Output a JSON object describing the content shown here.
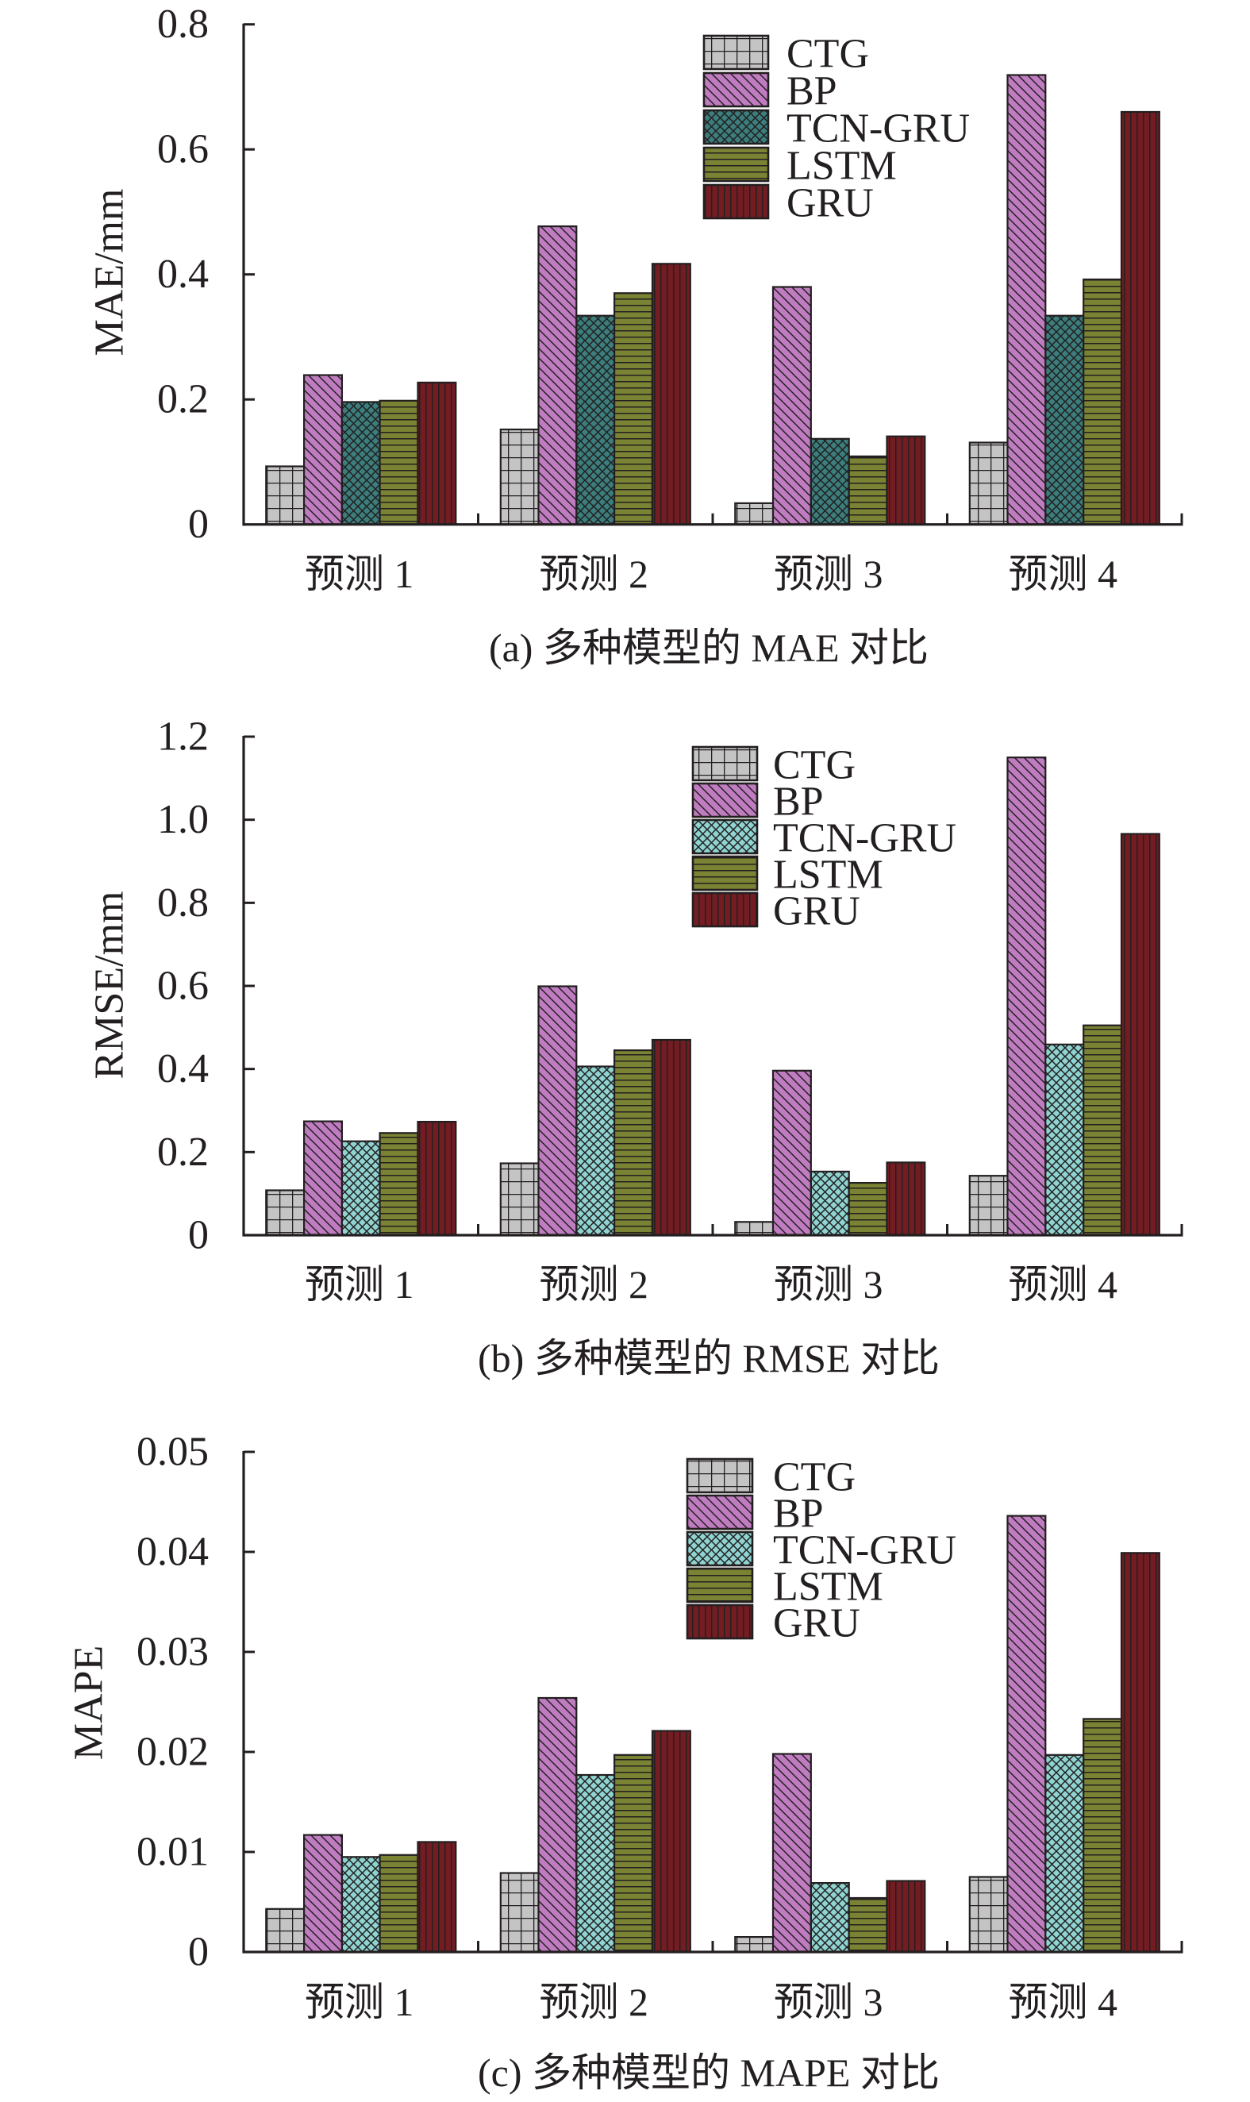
{
  "series_styles": [
    {
      "name": "CTG",
      "pattern": "grid",
      "color": "#c4c4c4"
    },
    {
      "name": "BP",
      "pattern": "diagonal",
      "color": "#c07cc0"
    },
    {
      "name": "TCN-GRU",
      "pattern": "crosshatch",
      "color": "#3b7e7d",
      "alt_color": "#8fd4d1"
    },
    {
      "name": "LSTM",
      "pattern": "horizontal",
      "color": "#7a8233"
    },
    {
      "name": "GRU",
      "pattern": "vertical",
      "color": "#731c22"
    }
  ],
  "chart_data": [
    {
      "type": "bar",
      "title": "(a) 多种模型的 MAE 对比",
      "xlabel": "",
      "ylabel": "MAE/mm",
      "ylim": [
        0,
        0.8
      ],
      "yticks": [
        0,
        0.2,
        0.4,
        0.6,
        0.8
      ],
      "ytick_labels": [
        "0",
        "0.2",
        "0.4",
        "0.6",
        "0.8"
      ],
      "categories": [
        "预测 1",
        "预测 2",
        "预测 3",
        "预测 4"
      ],
      "legend": {
        "position": "top-right",
        "entries": [
          "CTG",
          "BP",
          "TCN-GRU",
          "LSTM",
          "GRU"
        ]
      },
      "tcn_variant": "dark",
      "series": [
        {
          "name": "CTG",
          "values": [
            0.093,
            0.152,
            0.034,
            0.131
          ]
        },
        {
          "name": "BP",
          "values": [
            0.239,
            0.477,
            0.38,
            0.719
          ]
        },
        {
          "name": "TCN-GRU",
          "values": [
            0.196,
            0.334,
            0.137,
            0.334
          ]
        },
        {
          "name": "LSTM",
          "values": [
            0.198,
            0.37,
            0.109,
            0.392
          ]
        },
        {
          "name": "GRU",
          "values": [
            0.227,
            0.417,
            0.141,
            0.66
          ]
        }
      ],
      "grid": false
    },
    {
      "type": "bar",
      "title": "(b) 多种模型的 RMSE 对比",
      "xlabel": "",
      "ylabel": "RMSE/mm",
      "ylim": [
        0,
        1.2
      ],
      "yticks": [
        0,
        0.2,
        0.4,
        0.6,
        0.8,
        1.0,
        1.2
      ],
      "ytick_labels": [
        "0",
        "0.2",
        "0.4",
        "0.6",
        "0.8",
        "1.0",
        "1.2"
      ],
      "categories": [
        "预测 1",
        "预测 2",
        "预测 3",
        "预测 4"
      ],
      "legend": {
        "position": "top-right",
        "entries": [
          "CTG",
          "BP",
          "TCN-GRU",
          "LSTM",
          "GRU"
        ]
      },
      "tcn_variant": "light",
      "series": [
        {
          "name": "CTG",
          "values": [
            0.108,
            0.173,
            0.032,
            0.143
          ]
        },
        {
          "name": "BP",
          "values": [
            0.274,
            0.599,
            0.396,
            1.15
          ]
        },
        {
          "name": "TCN-GRU",
          "values": [
            0.226,
            0.406,
            0.153,
            0.459
          ]
        },
        {
          "name": "LSTM",
          "values": [
            0.246,
            0.445,
            0.126,
            0.505
          ]
        },
        {
          "name": "GRU",
          "values": [
            0.273,
            0.47,
            0.175,
            0.966
          ]
        }
      ],
      "grid": false
    },
    {
      "type": "bar",
      "title": "(c) 多种模型的 MAPE 对比",
      "xlabel": "",
      "ylabel": "MAPE",
      "ylim": [
        0,
        0.05
      ],
      "yticks": [
        0,
        0.01,
        0.02,
        0.03,
        0.04,
        0.05
      ],
      "ytick_labels": [
        "0",
        "0.01",
        "0.02",
        "0.03",
        "0.04",
        "0.05"
      ],
      "categories": [
        "预测 1",
        "预测 2",
        "预测 3",
        "预测 4"
      ],
      "legend": {
        "position": "top-right",
        "entries": [
          "CTG",
          "BP",
          "TCN-GRU",
          "LSTM",
          "GRU"
        ]
      },
      "tcn_variant": "light",
      "series": [
        {
          "name": "CTG",
          "values": [
            0.0043,
            0.0079,
            0.0015,
            0.0075
          ]
        },
        {
          "name": "BP",
          "values": [
            0.0117,
            0.0254,
            0.0198,
            0.0436
          ]
        },
        {
          "name": "TCN-GRU",
          "values": [
            0.0095,
            0.0177,
            0.0069,
            0.0197
          ]
        },
        {
          "name": "LSTM",
          "values": [
            0.0097,
            0.0197,
            0.0054,
            0.0233
          ]
        },
        {
          "name": "GRU",
          "values": [
            0.011,
            0.0221,
            0.0071,
            0.0399
          ]
        }
      ],
      "grid": false
    }
  ]
}
